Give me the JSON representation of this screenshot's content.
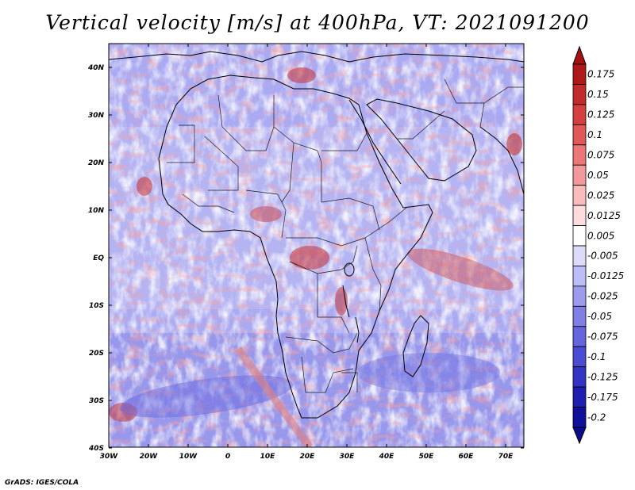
{
  "title": "Vertical velocity [m/s] at 400hPa, VT: 2021091200",
  "credit": "GrADS: IGES/COLA",
  "map": {
    "lat_labels": [
      "40N",
      "30N",
      "20N",
      "10N",
      "EQ",
      "10S",
      "20S",
      "30S",
      "40S"
    ],
    "lon_labels": [
      "30W",
      "20W",
      "10W",
      "0",
      "10E",
      "20E",
      "30E",
      "40E",
      "50E",
      "60E",
      "70E"
    ]
  },
  "colorbar": {
    "labels": [
      "0.175",
      "0.15",
      "0.125",
      "0.1",
      "0.075",
      "0.05",
      "0.025",
      "0.0125",
      "0.005",
      "-0.005",
      "-0.0125",
      "-0.025",
      "-0.05",
      "-0.075",
      "-0.1",
      "-0.125",
      "-0.175",
      "-0.2"
    ],
    "colors": [
      "#b01818",
      "#c32a2a",
      "#d43f3f",
      "#e15858",
      "#ec7777",
      "#f39999",
      "#f8bcbc",
      "#fcdcdc",
      "#ffffff",
      "#dcdcfa",
      "#bcbcf6",
      "#9c9cee",
      "#7f7fe6",
      "#6565dd",
      "#4c4cd2",
      "#3434c4",
      "#1e1eb0",
      "#10109a"
    ],
    "top_color": "#a51212",
    "bottom_color": "#0b0b8a"
  }
}
